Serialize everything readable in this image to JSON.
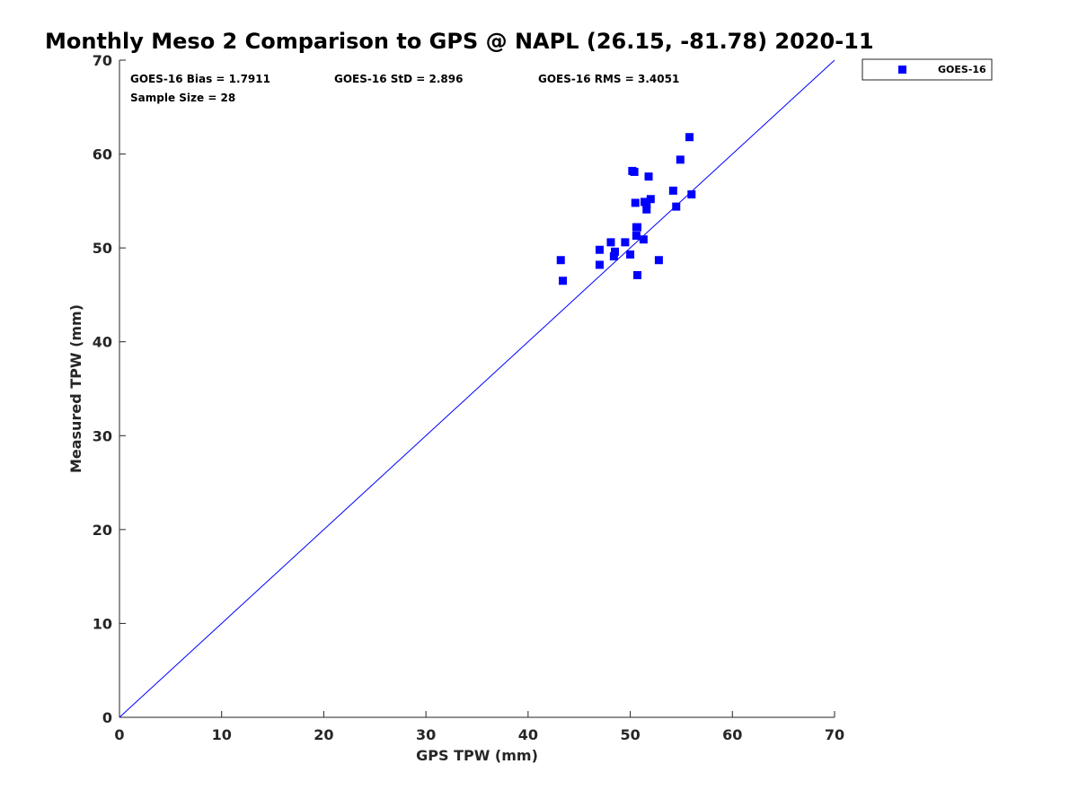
{
  "chart_data": {
    "type": "scatter",
    "title": "Monthly Meso 2 Comparison to GPS @ NAPL (26.15, -81.78) 2020-11",
    "xlabel": "GPS TPW (mm)",
    "ylabel": "Measured TPW (mm)",
    "xlim": [
      0,
      70
    ],
    "ylim": [
      0,
      70
    ],
    "x_ticks": [
      0,
      10,
      20,
      30,
      40,
      50,
      60,
      70
    ],
    "y_ticks": [
      0,
      10,
      20,
      30,
      40,
      50,
      60,
      70
    ],
    "grid": false,
    "legend_position": "outside-top-right",
    "stats": {
      "bias": "GOES-16 Bias = 1.7911",
      "std": "GOES-16 StD = 2.896",
      "rms": "GOES-16 RMS = 3.4051",
      "sample_size": "Sample Size = 28"
    },
    "reference_line": {
      "x": [
        0,
        70
      ],
      "y": [
        0,
        70
      ],
      "color": "#0000ff"
    },
    "series": [
      {
        "name": "GOES-16",
        "color": "#0000ff",
        "marker": "square",
        "points": [
          [
            43.2,
            48.7
          ],
          [
            43.4,
            46.5
          ],
          [
            47.0,
            49.8
          ],
          [
            47.0,
            48.2
          ],
          [
            48.1,
            50.6
          ],
          [
            48.4,
            49.1
          ],
          [
            48.5,
            49.6
          ],
          [
            49.5,
            50.6
          ],
          [
            50.0,
            49.3
          ],
          [
            50.2,
            58.2
          ],
          [
            50.5,
            54.8
          ],
          [
            50.6,
            51.3
          ],
          [
            50.6,
            52.2
          ],
          [
            50.7,
            52.2
          ],
          [
            50.7,
            47.1
          ],
          [
            51.3,
            50.9
          ],
          [
            51.4,
            54.9
          ],
          [
            51.6,
            54.1
          ],
          [
            51.6,
            54.7
          ],
          [
            51.8,
            57.6
          ],
          [
            52.0,
            55.2
          ],
          [
            52.8,
            48.7
          ],
          [
            54.2,
            56.1
          ],
          [
            54.5,
            54.4
          ],
          [
            54.9,
            59.4
          ],
          [
            55.8,
            61.8
          ],
          [
            56.0,
            55.7
          ],
          [
            50.4,
            58.1
          ]
        ]
      }
    ]
  }
}
